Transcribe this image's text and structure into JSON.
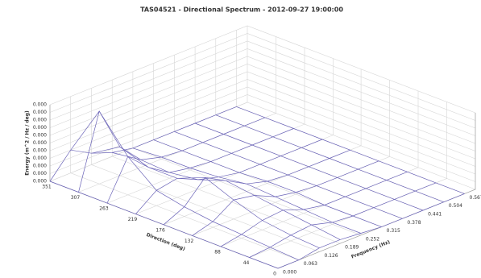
{
  "chart_data": {
    "type": "surface3d",
    "title": "TAS04521 - Directional Spectrum - 2012-09-27 19:00:00",
    "zlabel": "Energy (m^2 / Hz / deg)",
    "xlabel": "Direction (deg)",
    "ylabel": "Frequency (Hz)",
    "color": "#6b64b8",
    "xlim": [
      0,
      351
    ],
    "xticks": [
      351,
      307,
      263,
      219,
      176,
      132,
      88,
      44,
      0
    ],
    "ylim": [
      0,
      0.6
    ],
    "yticks": [
      {
        "value": 0,
        "label": "0.000"
      },
      0.063,
      0.126,
      0.189,
      0.252,
      0.315,
      0.378,
      0.441,
      0.504,
      0.567
    ],
    "zlim": [
      0,
      0.0004
    ],
    "zticks": [
      {
        "value": 0,
        "label": "0.000"
      },
      {
        "value": 4e-05,
        "label": "0.000"
      },
      {
        "value": 8e-05,
        "label": "0.000"
      },
      {
        "value": 0.00012,
        "label": "0.000"
      },
      {
        "value": 0.00016,
        "label": "0.000"
      },
      {
        "value": 0.0002,
        "label": "0.000"
      },
      {
        "value": 0.00024,
        "label": "0.000"
      },
      {
        "value": 0.00028,
        "label": "0.000"
      },
      {
        "value": 0.00032,
        "label": "0.000"
      },
      {
        "value": 0.00036,
        "label": "0.000"
      },
      {
        "value": 0.0004,
        "label": "0.000"
      }
    ],
    "surface": {
      "directions": [
        0,
        44,
        88,
        132,
        176,
        219,
        263,
        307,
        351
      ],
      "frequencies": [
        0,
        0.063,
        0.126,
        0.189,
        0.252,
        0.315,
        0.378,
        0.441,
        0.504,
        0.567
      ],
      "values": [
        [
          0,
          0,
          2e-05,
          2e-05,
          1e-05,
          0,
          0,
          0,
          0,
          0
        ],
        [
          0,
          1e-05,
          3e-05,
          4e-05,
          1e-05,
          0,
          0,
          0,
          0,
          0
        ],
        [
          0,
          2e-05,
          5e-05,
          6e-05,
          2e-05,
          0,
          0,
          0,
          0,
          0
        ],
        [
          0,
          3e-05,
          0.0001,
          8e-05,
          3e-05,
          1e-05,
          0,
          0,
          0,
          0
        ],
        [
          0,
          5e-05,
          0.00016,
          0.0001,
          4e-05,
          1e-05,
          0,
          0,
          0,
          0
        ],
        [
          0,
          8e-05,
          0.0001,
          5e-05,
          2e-05,
          0,
          0,
          0,
          0,
          0
        ],
        [
          0,
          0.0002,
          0.0001,
          3e-05,
          1e-05,
          0,
          0,
          0,
          0,
          0
        ],
        [
          0,
          0.00038,
          0.00015,
          4e-05,
          1e-05,
          0,
          0,
          0,
          0,
          0
        ],
        [
          0,
          0.00012,
          6e-05,
          2e-05,
          0,
          0,
          0,
          0,
          0,
          0
        ]
      ]
    }
  }
}
